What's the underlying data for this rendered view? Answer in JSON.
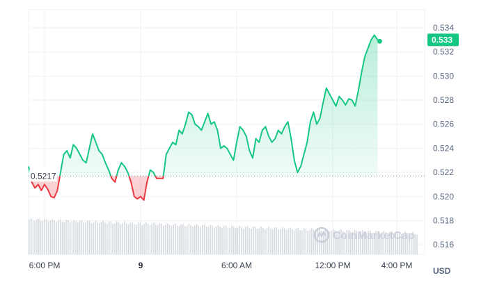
{
  "chart_data": {
    "type": "area",
    "currency_label": "USD",
    "baseline_value": 0.5217,
    "baseline_label": "0.5217",
    "current_value": 0.533,
    "current_label": "0.533",
    "watermark": "CoinMarketCap",
    "ylim": [
      0.5152,
      0.5355
    ],
    "y_ticks": [
      {
        "value": 0.534,
        "label": "0.534"
      },
      {
        "value": 0.532,
        "label": "0.532"
      },
      {
        "value": 0.53,
        "label": "0.530"
      },
      {
        "value": 0.528,
        "label": "0.528"
      },
      {
        "value": 0.526,
        "label": "0.526"
      },
      {
        "value": 0.524,
        "label": "0.524"
      },
      {
        "value": 0.522,
        "label": "0.522"
      },
      {
        "value": 0.52,
        "label": "0.520"
      },
      {
        "value": 0.518,
        "label": "0.518"
      },
      {
        "value": 0.516,
        "label": "0.516"
      }
    ],
    "xlim": [
      0,
      23
    ],
    "x_ticks": [
      {
        "hours": 1,
        "label": "6:00 PM",
        "bold": false
      },
      {
        "hours": 7,
        "label": "9",
        "bold": true
      },
      {
        "hours": 13,
        "label": "6:00 AM",
        "bold": false
      },
      {
        "hours": 19,
        "label": "12:00 PM",
        "bold": false
      },
      {
        "hours": 23,
        "label": "4:00 PM",
        "bold": false
      }
    ],
    "price_series": [
      [
        0.0,
        0.5225
      ],
      [
        0.2,
        0.5212
      ],
      [
        0.4,
        0.5207
      ],
      [
        0.6,
        0.521
      ],
      [
        0.8,
        0.5205
      ],
      [
        1.0,
        0.521
      ],
      [
        1.2,
        0.5206
      ],
      [
        1.4,
        0.52
      ],
      [
        1.6,
        0.5199
      ],
      [
        1.8,
        0.5205
      ],
      [
        2.0,
        0.522
      ],
      [
        2.2,
        0.5235
      ],
      [
        2.4,
        0.5238
      ],
      [
        2.6,
        0.5232
      ],
      [
        2.8,
        0.5243
      ],
      [
        3.0,
        0.524
      ],
      [
        3.2,
        0.5235
      ],
      [
        3.4,
        0.523
      ],
      [
        3.6,
        0.5228
      ],
      [
        3.8,
        0.524
      ],
      [
        4.0,
        0.5252
      ],
      [
        4.2,
        0.5245
      ],
      [
        4.4,
        0.5238
      ],
      [
        4.6,
        0.5235
      ],
      [
        4.8,
        0.5228
      ],
      [
        5.0,
        0.5222
      ],
      [
        5.2,
        0.5215
      ],
      [
        5.4,
        0.5212
      ],
      [
        5.6,
        0.5222
      ],
      [
        5.8,
        0.5228
      ],
      [
        6.0,
        0.5225
      ],
      [
        6.2,
        0.522
      ],
      [
        6.4,
        0.5212
      ],
      [
        6.6,
        0.52
      ],
      [
        6.8,
        0.5198
      ],
      [
        7.0,
        0.52
      ],
      [
        7.2,
        0.5197
      ],
      [
        7.4,
        0.5212
      ],
      [
        7.6,
        0.5222
      ],
      [
        7.8,
        0.522
      ],
      [
        8.0,
        0.5215
      ],
      [
        8.2,
        0.5215
      ],
      [
        8.4,
        0.5215
      ],
      [
        8.6,
        0.5235
      ],
      [
        8.8,
        0.524
      ],
      [
        9.0,
        0.5245
      ],
      [
        9.2,
        0.5243
      ],
      [
        9.4,
        0.5255
      ],
      [
        9.6,
        0.5252
      ],
      [
        9.8,
        0.526
      ],
      [
        10.0,
        0.527
      ],
      [
        10.2,
        0.5268
      ],
      [
        10.4,
        0.526
      ],
      [
        10.6,
        0.5258
      ],
      [
        10.8,
        0.5255
      ],
      [
        11.0,
        0.5262
      ],
      [
        11.2,
        0.5269
      ],
      [
        11.4,
        0.526
      ],
      [
        11.6,
        0.5262
      ],
      [
        11.8,
        0.5255
      ],
      [
        12.0,
        0.524
      ],
      [
        12.2,
        0.5242
      ],
      [
        12.4,
        0.524
      ],
      [
        12.6,
        0.5235
      ],
      [
        12.8,
        0.523
      ],
      [
        13.0,
        0.5245
      ],
      [
        13.2,
        0.5258
      ],
      [
        13.4,
        0.5255
      ],
      [
        13.6,
        0.525
      ],
      [
        13.8,
        0.5238
      ],
      [
        14.0,
        0.5232
      ],
      [
        14.2,
        0.5248
      ],
      [
        14.4,
        0.5245
      ],
      [
        14.6,
        0.5255
      ],
      [
        14.8,
        0.5258
      ],
      [
        15.0,
        0.525
      ],
      [
        15.2,
        0.5245
      ],
      [
        15.4,
        0.5248
      ],
      [
        15.6,
        0.5255
      ],
      [
        15.8,
        0.5252
      ],
      [
        16.0,
        0.5258
      ],
      [
        16.2,
        0.5262
      ],
      [
        16.4,
        0.5248
      ],
      [
        16.6,
        0.523
      ],
      [
        16.8,
        0.522
      ],
      [
        17.0,
        0.5225
      ],
      [
        17.2,
        0.5235
      ],
      [
        17.4,
        0.5245
      ],
      [
        17.6,
        0.5262
      ],
      [
        17.8,
        0.527
      ],
      [
        18.0,
        0.526
      ],
      [
        18.2,
        0.5265
      ],
      [
        18.4,
        0.5278
      ],
      [
        18.6,
        0.529
      ],
      [
        18.8,
        0.5285
      ],
      [
        19.0,
        0.528
      ],
      [
        19.2,
        0.5275
      ],
      [
        19.4,
        0.5283
      ],
      [
        19.6,
        0.528
      ],
      [
        19.8,
        0.5276
      ],
      [
        20.0,
        0.5281
      ],
      [
        20.2,
        0.528
      ],
      [
        20.4,
        0.5275
      ],
      [
        20.6,
        0.5288
      ],
      [
        20.8,
        0.5303
      ],
      [
        21.0,
        0.5316
      ],
      [
        21.2,
        0.5323
      ],
      [
        21.4,
        0.533
      ],
      [
        21.6,
        0.5334
      ],
      [
        21.8,
        0.533
      ]
    ],
    "volume_bar_count": 200
  }
}
